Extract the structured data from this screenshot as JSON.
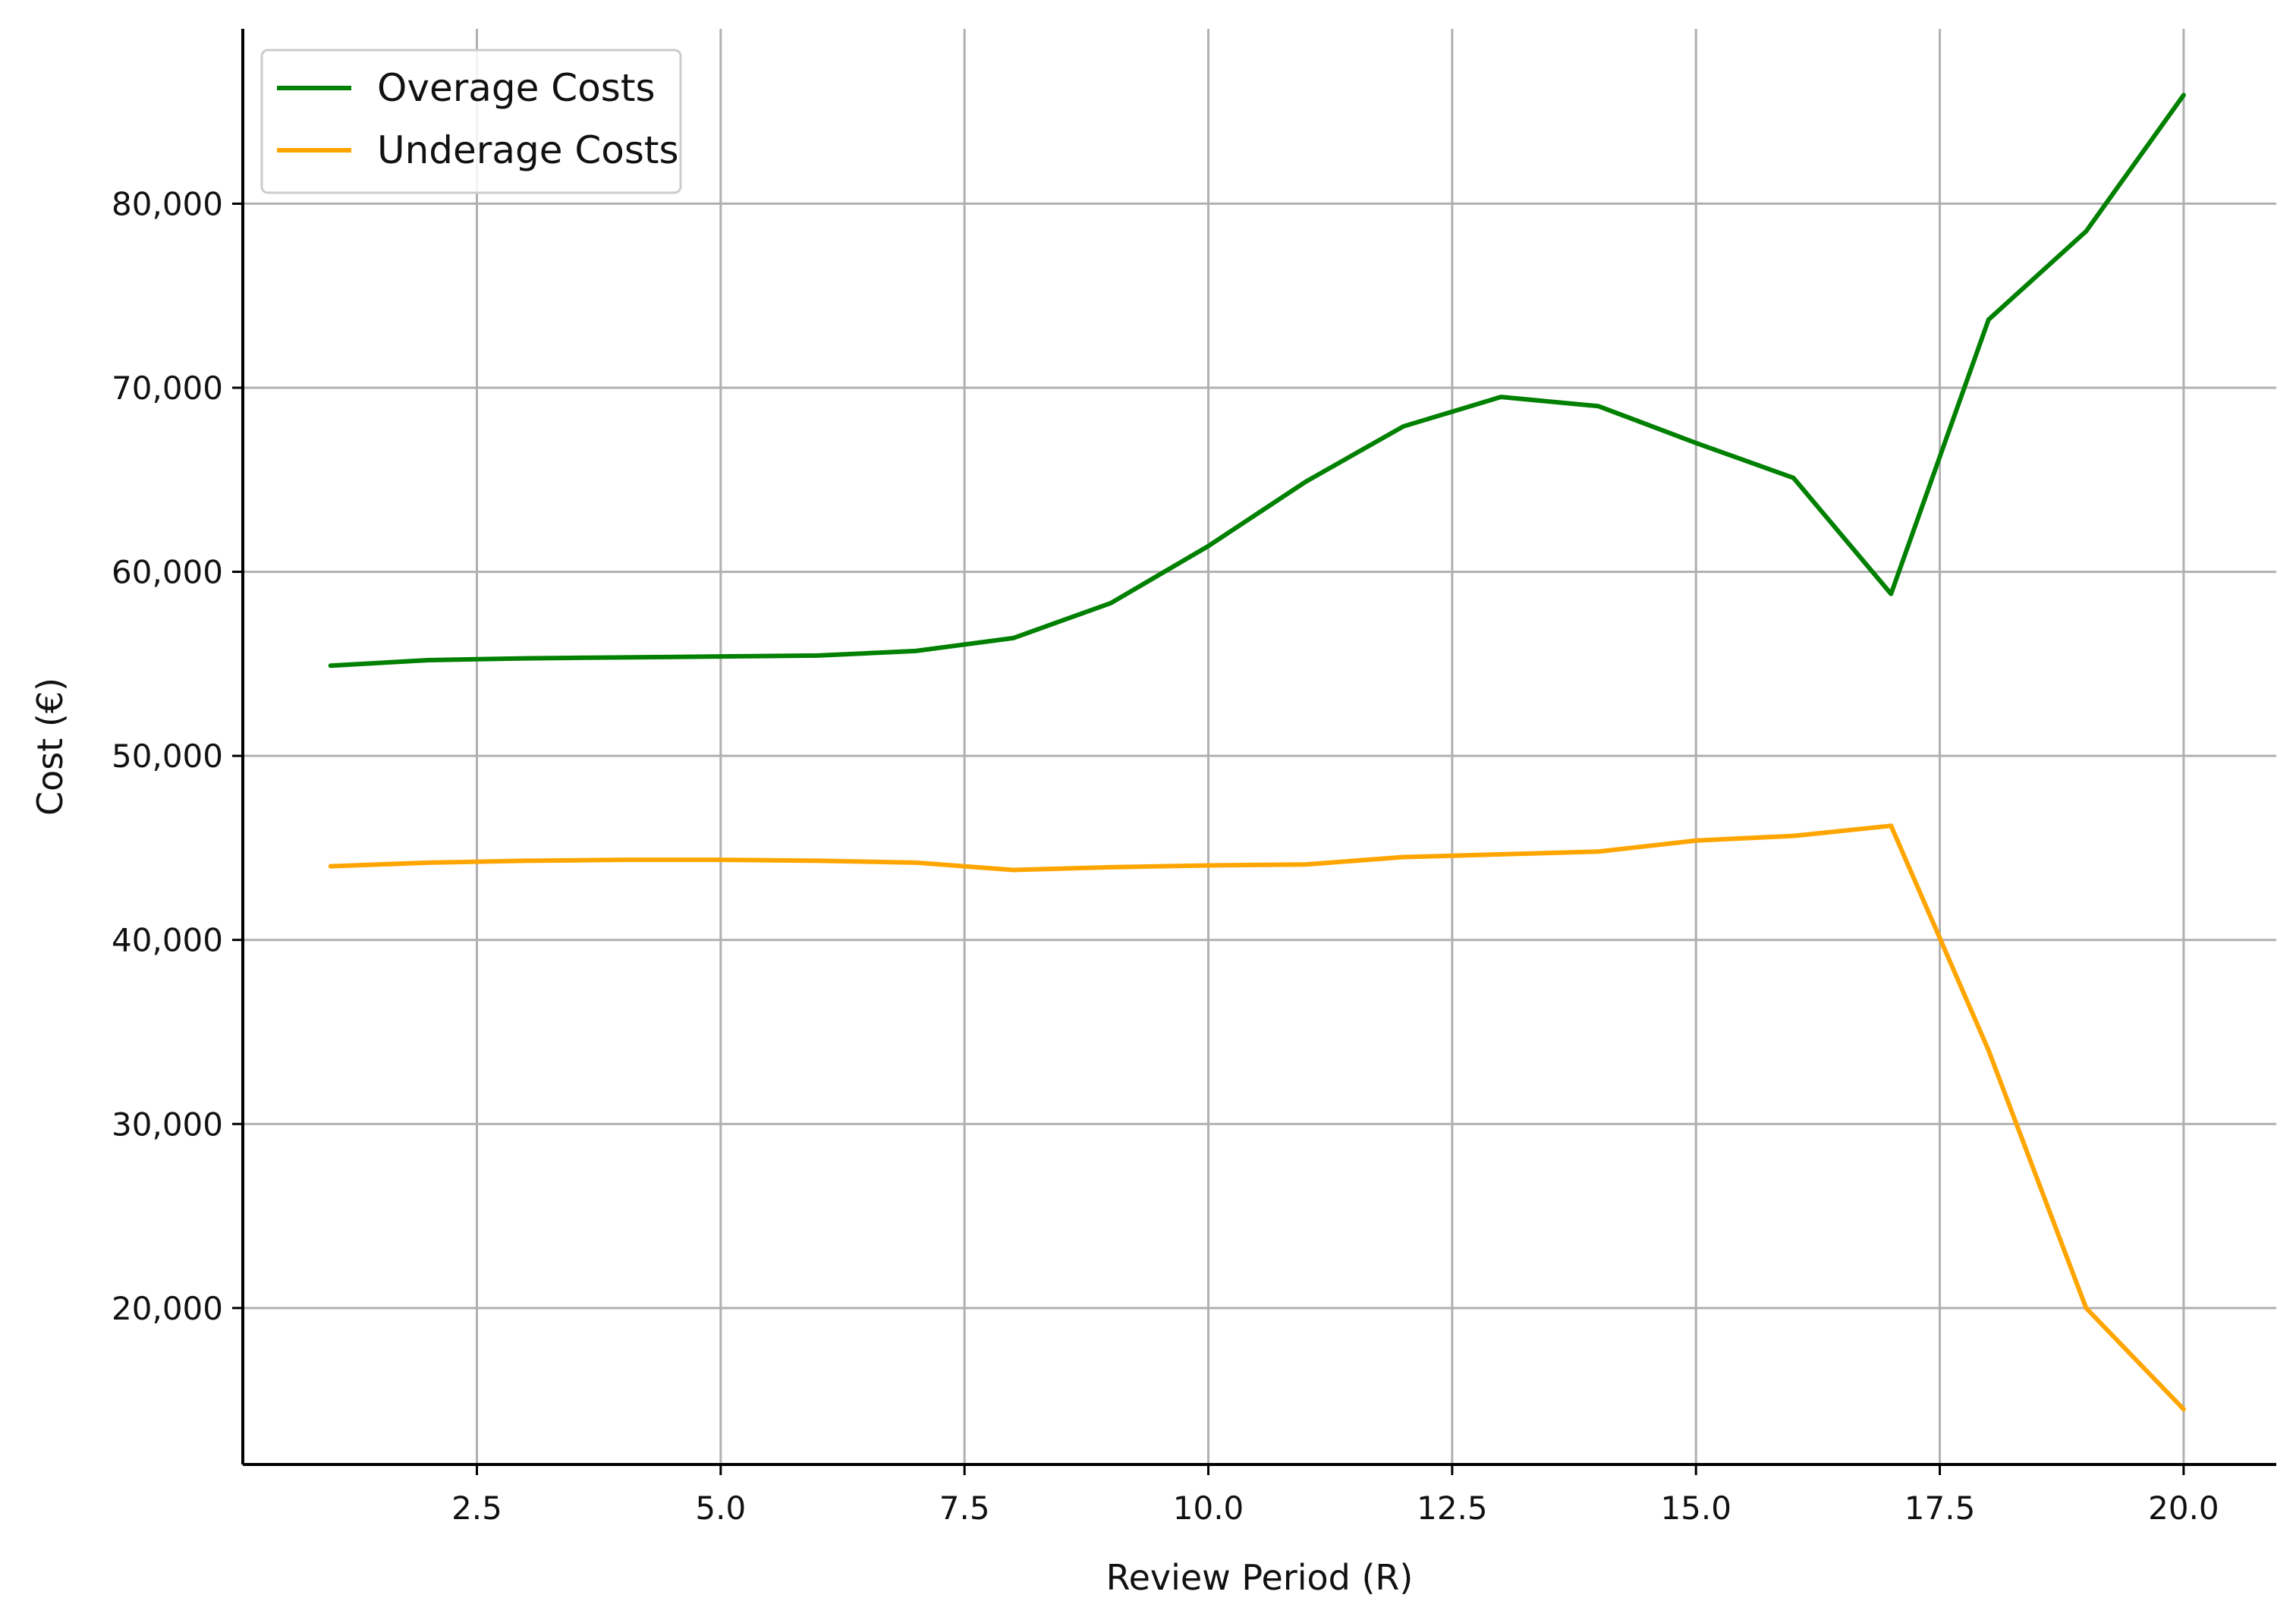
{
  "chart_data": {
    "type": "line",
    "title": "",
    "xlabel": "Review Period (R)",
    "ylabel": "Cost (€)",
    "xlim": [
      0.1,
      20.95
    ],
    "ylim": [
      11500,
      89500
    ],
    "xticks": [
      2.5,
      5.0,
      7.5,
      10.0,
      12.5,
      15.0,
      17.5,
      20.0
    ],
    "xtick_labels": [
      "2.5",
      "5.0",
      "7.5",
      "10.0",
      "12.5",
      "15.0",
      "17.5",
      "20.0"
    ],
    "yticks": [
      20000,
      30000,
      40000,
      50000,
      60000,
      70000,
      80000
    ],
    "ytick_labels": [
      "20,000",
      "30,000",
      "40,000",
      "50,000",
      "60,000",
      "70,000",
      "80,000"
    ],
    "grid": true,
    "legend_position": "top-left",
    "x": [
      1,
      2,
      3,
      4,
      5,
      6,
      7,
      8,
      9,
      10,
      11,
      12,
      13,
      14,
      15,
      16,
      17,
      18,
      19,
      20
    ],
    "series": [
      {
        "name": "Overage Costs",
        "color": "#008000",
        "values": [
          54900,
          55200,
          55300,
          55350,
          55400,
          55450,
          55700,
          56400,
          58300,
          61400,
          64900,
          67900,
          69500,
          69000,
          67000,
          65100,
          58800,
          73700,
          78500,
          85900
        ]
      },
      {
        "name": "Underage Costs",
        "color": "#FFA500",
        "values": [
          44000,
          44200,
          44300,
          44350,
          44350,
          44300,
          44200,
          43800,
          43950,
          44050,
          44100,
          44500,
          44650,
          44800,
          45400,
          45650,
          46200,
          34000,
          20000,
          14500
        ]
      }
    ]
  }
}
